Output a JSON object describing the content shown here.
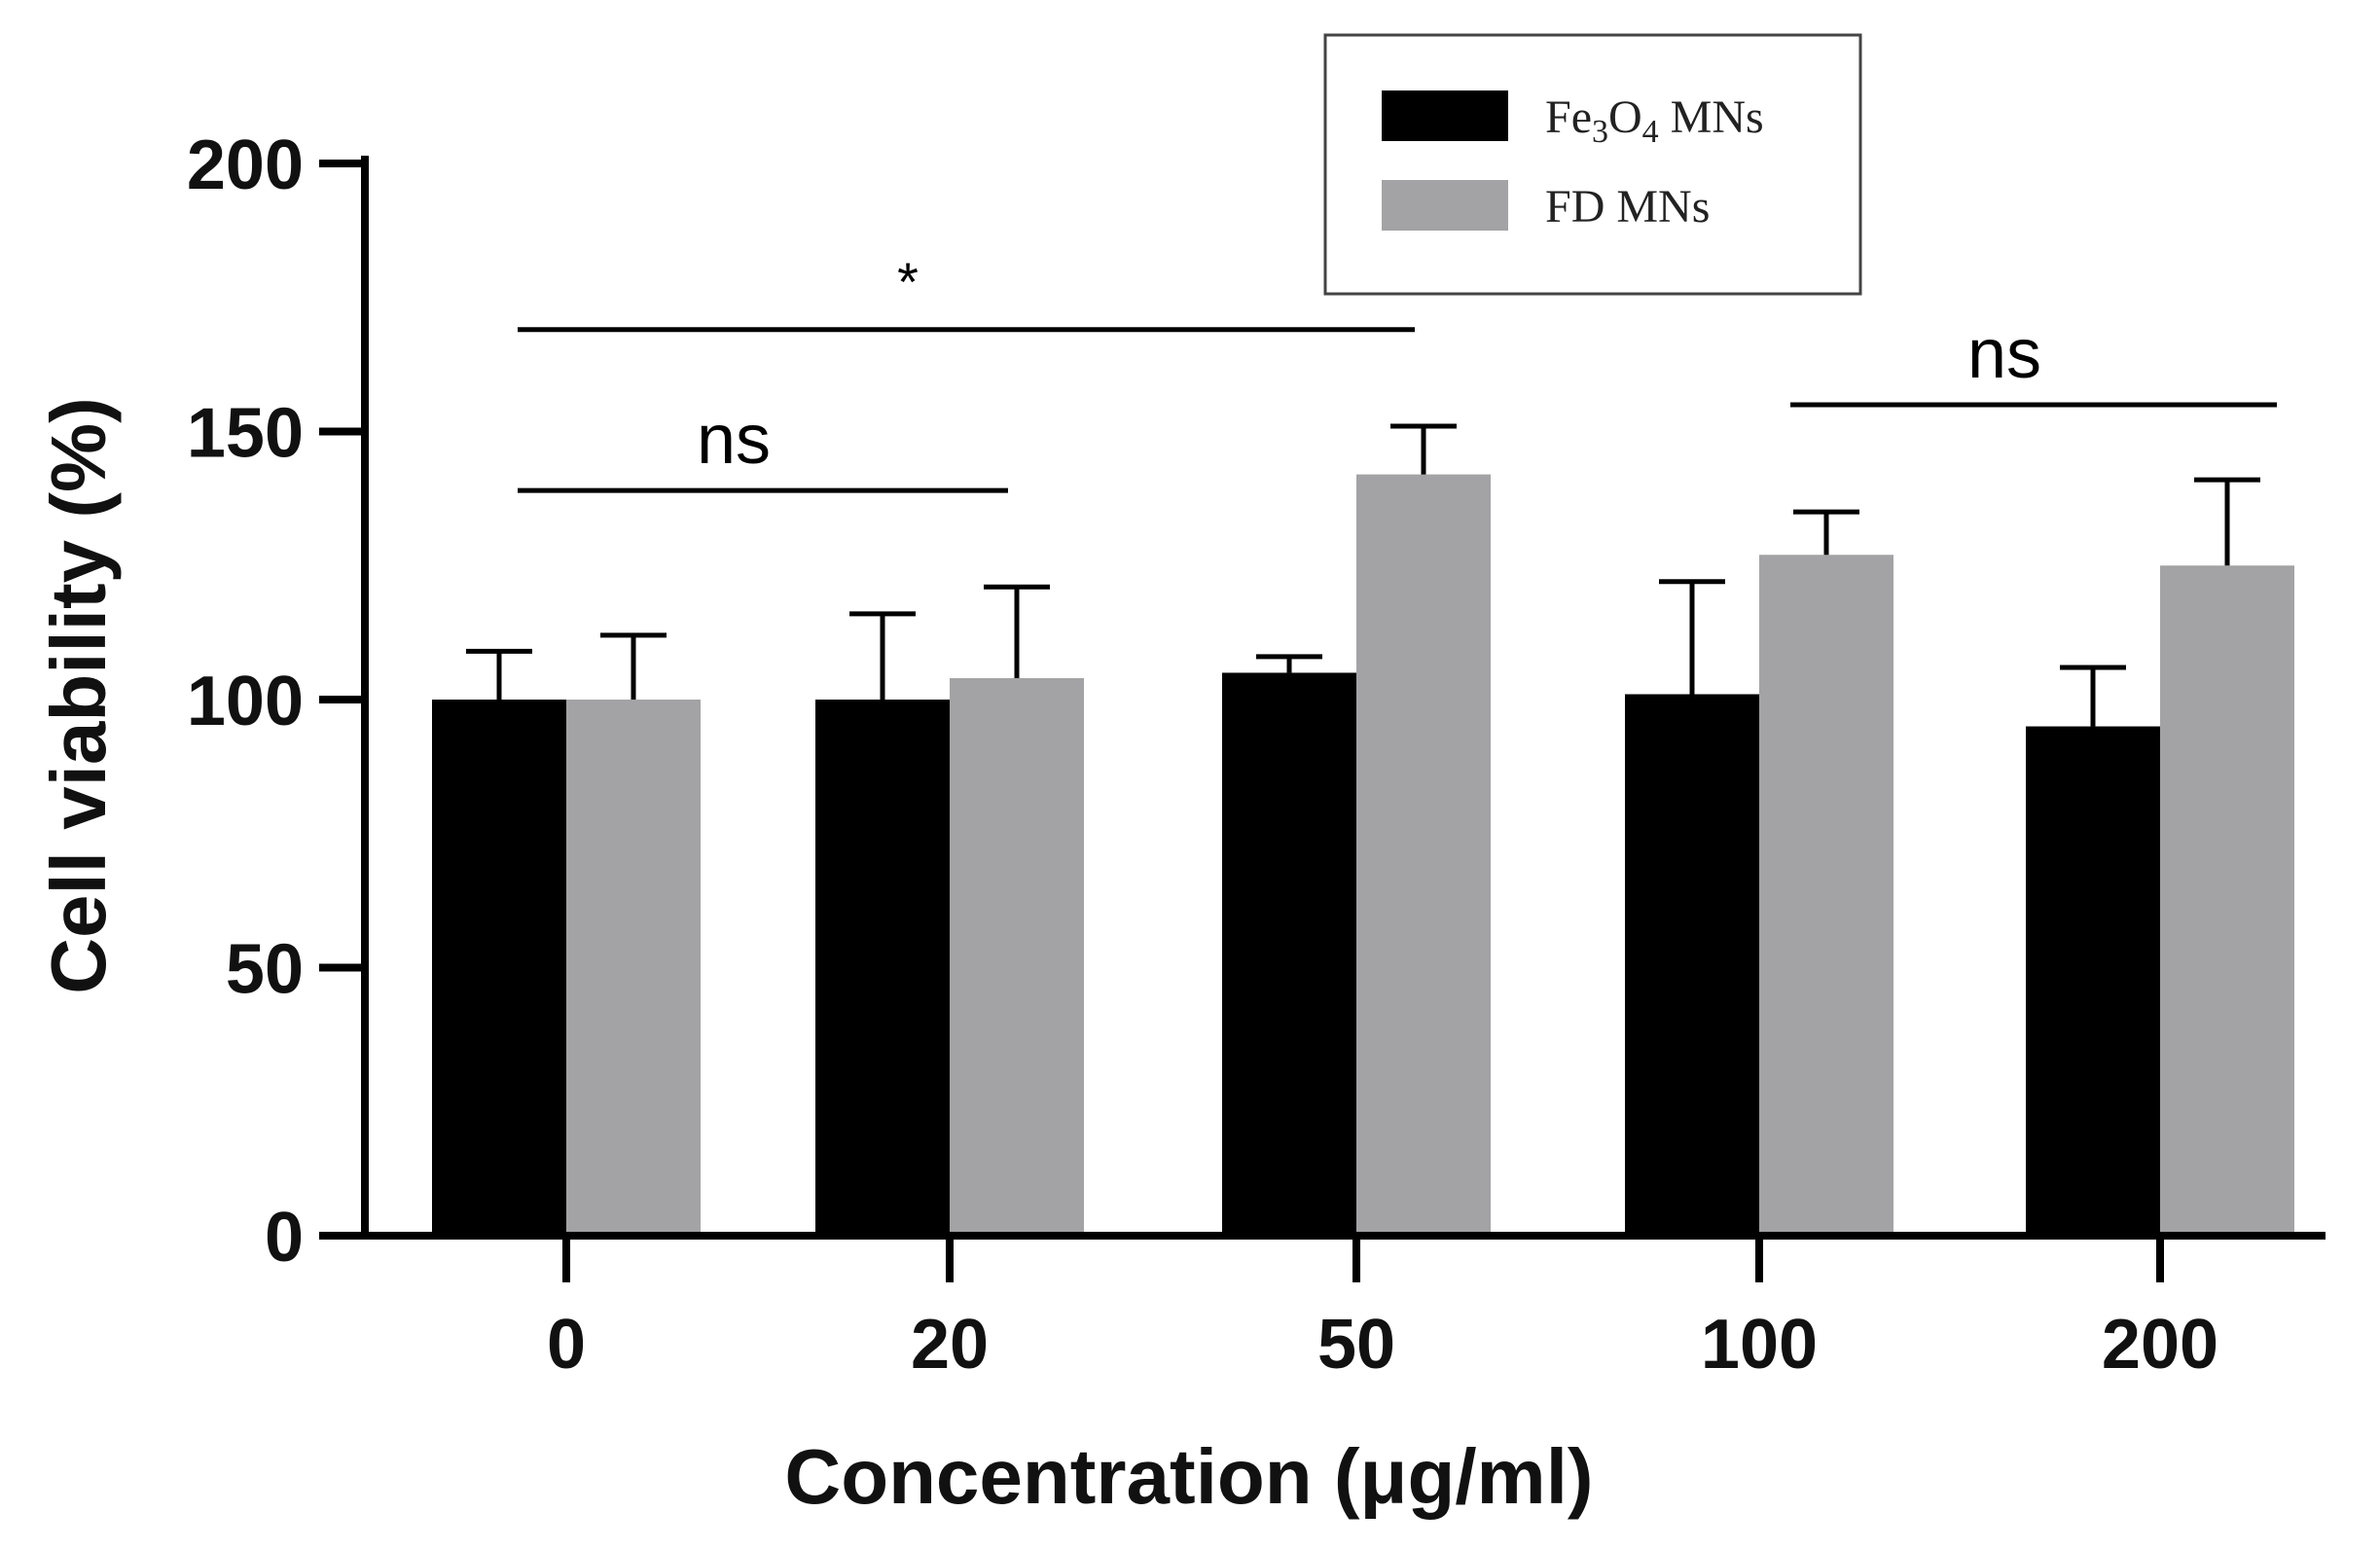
{
  "chart_data": {
    "type": "bar",
    "title": "",
    "xlabel": "Concentration (μg/ml)",
    "ylabel": "Cell viability (%)",
    "ylim": [
      0,
      200
    ],
    "yticks": [
      0,
      50,
      100,
      150,
      200
    ],
    "categories": [
      "0",
      "20",
      "50",
      "100",
      "200"
    ],
    "series": [
      {
        "name": "Fe3O4 MNs",
        "legend_main": "Fe",
        "legend_sub1": "3",
        "legend_mid": "O",
        "legend_sub2": "4",
        "legend_tail": " MNs",
        "color": "#000000",
        "values": [
          100,
          100,
          105,
          101,
          95
        ],
        "errors": [
          9,
          16,
          3,
          21,
          11
        ]
      },
      {
        "name": "FD MNs",
        "color": "#a3a3a5",
        "values": [
          100,
          104,
          142,
          127,
          125
        ],
        "errors": [
          12,
          17,
          9,
          8,
          16
        ]
      }
    ],
    "legend": {
      "position": "top-right",
      "fe_label": "Fe3O4 MNs",
      "fd_label": "FD MNs"
    },
    "annotations": [
      {
        "label": "*",
        "from_category": "0",
        "to_category": "50",
        "y": 169
      },
      {
        "label": "ns",
        "from_category": "0",
        "to_category": "20",
        "y": 139
      },
      {
        "label": "ns",
        "from_category": "100",
        "to_category": "200",
        "y": 155
      }
    ]
  }
}
